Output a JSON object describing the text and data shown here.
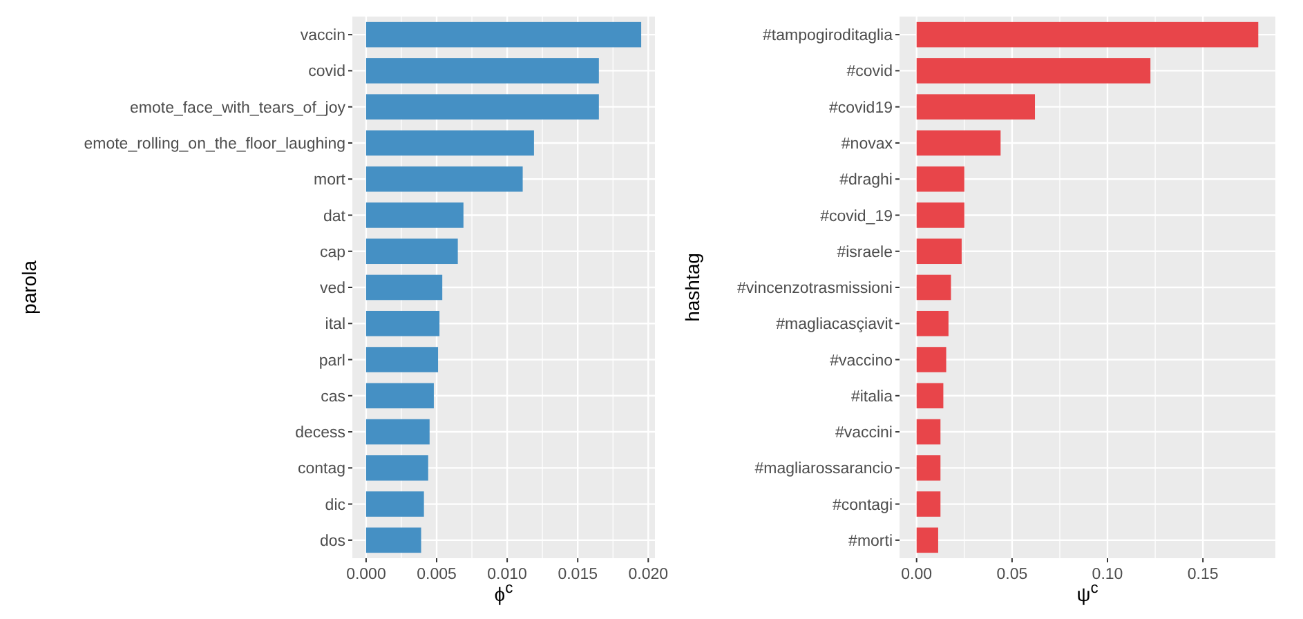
{
  "chart_data": [
    {
      "type": "bar",
      "orientation": "horizontal",
      "grid": true,
      "xlabel": "ϕ$^{c}$",
      "ylabel": "parola",
      "color": "#4590c4",
      "categories": [
        "vaccin",
        "covid",
        "emote_face_with_tears_of_joy",
        "emote_rolling_on_the_floor_laughing",
        "mort",
        "dat",
        "cap",
        "ved",
        "ital",
        "parl",
        "cas",
        "decess",
        "contag",
        "dic",
        "dos"
      ],
      "values": [
        0.0195,
        0.0165,
        0.0165,
        0.0119,
        0.0111,
        0.0069,
        0.0065,
        0.0054,
        0.0052,
        0.0051,
        0.0048,
        0.0045,
        0.0044,
        0.0041,
        0.0039
      ],
      "xlim": [
        -0.000975,
        0.020475
      ],
      "xticks": [
        {
          "value": 0,
          "label": "0.000"
        },
        {
          "value": 0.005,
          "label": "0.005"
        },
        {
          "value": 0.01,
          "label": "0.010"
        },
        {
          "value": 0.015,
          "label": "0.015"
        },
        {
          "value": 0.02,
          "label": "0.020"
        }
      ]
    },
    {
      "type": "bar",
      "orientation": "horizontal",
      "grid": true,
      "xlabel": "ψ$^{c}$",
      "ylabel": "hashtag",
      "color": "#e8454a",
      "categories": [
        "#tampogiroditaglia",
        "#covid",
        "#covid19",
        "#novax",
        "#draghi",
        "#covid_19",
        "#israele",
        "#vincenzotrasmissioni",
        "#magliacasçiavit",
        "#vaccino",
        "#italia",
        "#vaccini",
        "#magliarossarancio",
        "#contagi",
        "#morti"
      ],
      "values": [
        0.179,
        0.1225,
        0.062,
        0.044,
        0.025,
        0.025,
        0.0236,
        0.018,
        0.0167,
        0.0155,
        0.014,
        0.0125,
        0.0125,
        0.0125,
        0.0113
      ],
      "xlim": [
        -0.00895,
        0.18795
      ],
      "xticks": [
        {
          "value": 0,
          "label": "0.00"
        },
        {
          "value": 0.05,
          "label": "0.05"
        },
        {
          "value": 0.1,
          "label": "0.10"
        },
        {
          "value": 0.15,
          "label": "0.15"
        }
      ]
    }
  ]
}
